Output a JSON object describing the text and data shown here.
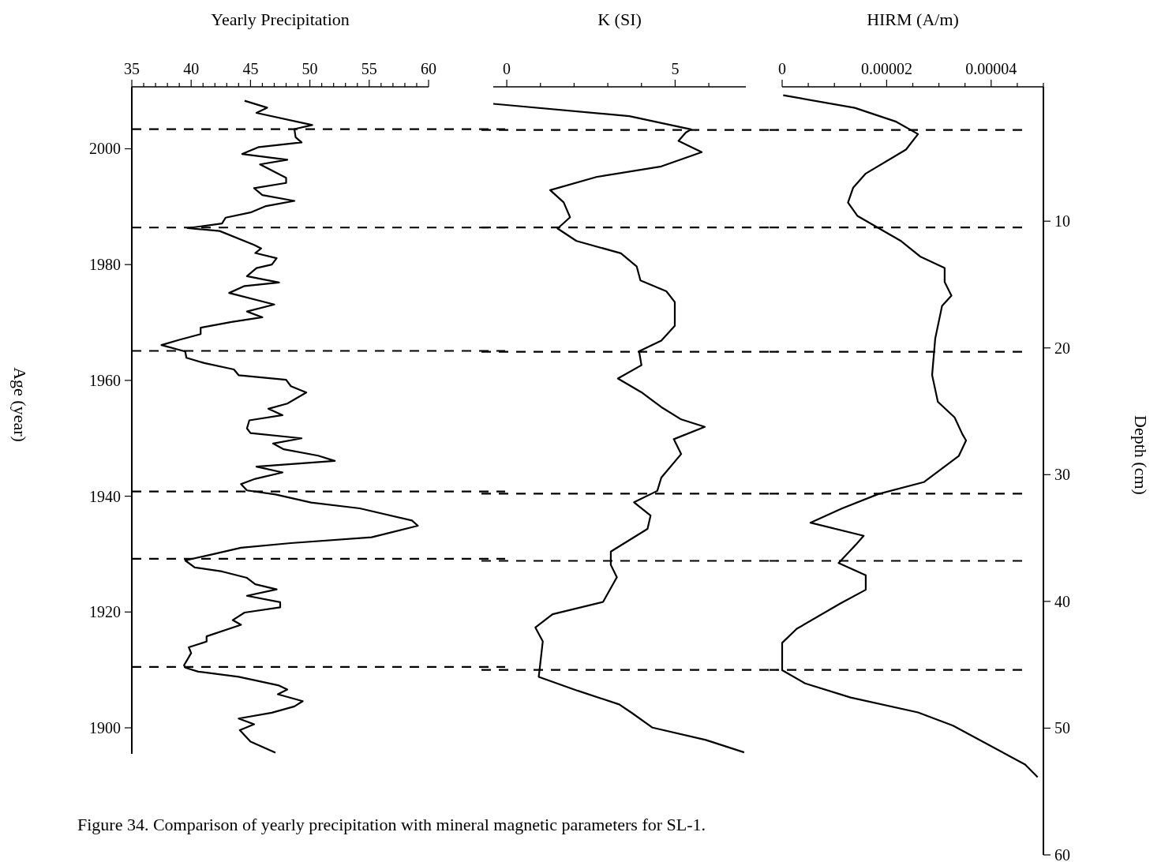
{
  "chart_data": [
    {
      "type": "line",
      "xlabel": "Yearly Precipitation",
      "ylabel": "Age (year)",
      "xlim": [
        35,
        60
      ],
      "xticks": [
        35,
        {
          "value": 36,
          "label": null
        },
        {
          "value": 37,
          "label": null
        },
        {
          "value": 38,
          "label": null
        },
        {
          "value": 39,
          "label": null
        },
        40,
        {
          "value": 41,
          "label": null
        },
        {
          "value": 42,
          "label": null
        },
        {
          "value": 43,
          "label": null
        },
        {
          "value": 44,
          "label": null
        },
        45,
        {
          "value": 46,
          "label": null
        },
        {
          "value": 47,
          "label": null
        },
        {
          "value": 48,
          "label": null
        },
        {
          "value": 49,
          "label": null
        },
        50,
        {
          "value": 51,
          "label": null
        },
        {
          "value": 52,
          "label": null
        },
        {
          "value": 53,
          "label": null
        },
        {
          "value": 54,
          "label": null
        },
        55,
        {
          "value": 56,
          "label": null
        },
        {
          "value": 57,
          "label": null
        },
        {
          "value": 58,
          "label": null
        },
        {
          "value": 59,
          "label": null
        },
        60
      ],
      "ylim": [
        1895.5,
        2010.7
      ],
      "yticks": [
        1900,
        1920,
        1940,
        1960,
        1980,
        2000
      ],
      "grid": false,
      "series": [
        {
          "color": "#000000",
          "x": [
            44.5,
            46.4,
            45.5,
            50.2,
            48.7,
            48.8,
            49.3,
            45.7,
            44.3,
            48.1,
            45.8,
            48.0,
            48.0,
            45.3,
            46.0,
            48.7,
            46.3,
            45.0,
            42.9,
            42.6,
            39.7,
            42.4,
            45.3,
            45.9,
            45.4,
            47.2,
            46.8,
            45.5,
            44.7,
            47.4,
            44.5,
            43.2,
            47.0,
            44.7,
            46.0,
            43.4,
            40.8,
            40.8,
            39.0,
            37.5,
            39.5,
            39.6,
            41.1,
            43.6,
            44.0,
            48.0,
            48.4,
            49.7,
            48.1,
            46.5,
            47.7,
            44.9,
            44.7,
            45.0,
            49.3,
            46.9,
            47.8,
            50.7,
            52.1,
            45.5,
            47.7,
            45.4,
            44.2,
            44.7,
            47.1,
            50.1,
            54.2,
            58.6,
            59.1,
            55.2,
            48.4,
            44.2,
            41.9,
            39.5,
            40.3,
            42.6,
            44.7,
            45.4,
            47.2,
            44.7,
            47.5,
            47.5,
            44.5,
            43.5,
            44.2,
            41.3,
            41.3,
            39.8,
            40.0,
            39.4,
            39.5,
            40.6,
            44.0,
            47.4,
            48.1,
            47.3,
            49.4,
            48.7,
            46.8,
            44.0,
            45.3,
            44.1,
            45.0,
            47.1
          ],
          "values": [
            2008.3,
            2007.1,
            2006.2,
            2004.1,
            2003.4,
            2002.0,
            2001.1,
            2000.3,
            1999.1,
            1998.1,
            1997.3,
            1995.0,
            1994.1,
            1993.2,
            1992.0,
            1991.0,
            1990.1,
            1989.0,
            1988.1,
            1987.1,
            1986.3,
            1985.8,
            1983.4,
            1982.8,
            1982.0,
            1981.1,
            1980.0,
            1979.4,
            1978.0,
            1976.9,
            1976.3,
            1975.1,
            1973.1,
            1971.9,
            1970.9,
            1970.1,
            1969.1,
            1968.0,
            1967.0,
            1966.1,
            1965.0,
            1963.9,
            1963.0,
            1961.9,
            1960.9,
            1960.1,
            1959.0,
            1957.9,
            1956.0,
            1955.1,
            1954.0,
            1953.1,
            1951.7,
            1950.9,
            1950.0,
            1949.1,
            1948.1,
            1947.0,
            1946.1,
            1945.1,
            1944.1,
            1943.0,
            1942.1,
            1941.0,
            1940.3,
            1938.9,
            1937.9,
            1935.8,
            1934.9,
            1932.9,
            1931.9,
            1931.1,
            1930.0,
            1928.9,
            1927.7,
            1927.0,
            1925.9,
            1924.8,
            1923.9,
            1922.8,
            1921.7,
            1920.8,
            1919.9,
            1918.6,
            1917.8,
            1915.8,
            1914.9,
            1913.9,
            1912.9,
            1910.8,
            1910.4,
            1909.7,
            1908.8,
            1907.3,
            1906.6,
            1905.8,
            1904.6,
            1903.7,
            1902.6,
            1901.6,
            1900.6,
            1899.6,
            1897.6,
            1895.7
          ]
        }
      ],
      "ref_lines": [
        {
          "axis": "y",
          "value": 2003.4,
          "line_style": "dashed"
        },
        {
          "axis": "y",
          "value": 1986.4,
          "line_style": "dashed"
        },
        {
          "axis": "y",
          "value": 1965.1,
          "line_style": "dashed"
        },
        {
          "axis": "y",
          "value": 1940.8,
          "line_style": "dashed"
        },
        {
          "axis": "y",
          "value": 1929.2,
          "line_style": "dashed"
        },
        {
          "axis": "y",
          "value": 1910.5,
          "line_style": "dashed"
        }
      ],
      "annotations": [
        "Figure 34.  Comparison of yearly precipitation with mineral magnetic parameters for SL-1."
      ]
    },
    {
      "type": "line",
      "xlabel": "K (SI)",
      "xlim": [
        -0.4,
        7.1
      ],
      "xticks": [
        0,
        {
          "value": 1,
          "label": null
        },
        {
          "value": 2,
          "label": null
        },
        {
          "value": 3,
          "label": null
        },
        {
          "value": 4,
          "label": null
        },
        5,
        {
          "value": 6,
          "label": null
        }
      ],
      "ylim": [
        60,
        -0.6
      ],
      "tick_labels": "x",
      "grid": false,
      "series": [
        {
          "color": "#000000",
          "x": [
            -0.4,
            3.64,
            5.47,
            5.32,
            5.1,
            5.79,
            4.59,
            2.68,
            1.29,
            1.69,
            1.88,
            1.51,
            2.07,
            3.39,
            3.86,
            3.97,
            4.74,
            4.99,
            4.99,
            4.59,
            3.93,
            4.0,
            3.3,
            4.0,
            4.59,
            5.18,
            5.88,
            4.96,
            5.18,
            4.59,
            4.47,
            3.78,
            4.27,
            4.18,
            3.09,
            3.09,
            3.27,
            2.86,
            1.36,
            0.85,
            1.07,
            1.0,
            0.95,
            2.1,
            3.34,
            3.71,
            4.33,
            5.91,
            7.05
          ],
          "values": [
            0.74,
            1.71,
            2.76,
            3.0,
            3.66,
            4.55,
            5.68,
            6.5,
            7.55,
            8.52,
            9.69,
            10.58,
            11.56,
            12.53,
            13.58,
            14.67,
            15.53,
            16.38,
            18.25,
            19.42,
            20.27,
            21.36,
            22.41,
            23.5,
            24.67,
            25.64,
            26.23,
            27.2,
            28.37,
            30.23,
            31.28,
            32.18,
            33.23,
            34.28,
            36.07,
            37.12,
            38.09,
            40.04,
            41.01,
            42.06,
            43.15,
            44.79,
            45.95,
            47.04,
            48.13,
            48.79,
            49.96,
            50.93,
            51.91
          ]
        }
      ],
      "ref_lines": [
        {
          "axis": "y",
          "value": 2.8,
          "line_style": "dashed"
        },
        {
          "axis": "y",
          "value": 10.5,
          "line_style": "dashed"
        },
        {
          "axis": "y",
          "value": 20.3,
          "line_style": "dashed"
        },
        {
          "axis": "y",
          "value": 31.5,
          "line_style": "dashed"
        },
        {
          "axis": "y",
          "value": 36.8,
          "line_style": "dashed"
        },
        {
          "axis": "y",
          "value": 45.4,
          "line_style": "dashed"
        }
      ]
    },
    {
      "type": "line",
      "xlabel": "HIRM (A/m)",
      "ylabel": "Depth (cm)",
      "xlim": [
        0,
        5e-05
      ],
      "xticks": [
        0,
        {
          "value": 5e-06,
          "label": null
        },
        {
          "value": 1e-05,
          "label": null
        },
        {
          "value": 1.5e-05,
          "label": null
        },
        {
          "value": 2e-05,
          "label": "0.00002"
        },
        {
          "value": 2.5e-05,
          "label": null
        },
        {
          "value": 3e-05,
          "label": null
        },
        {
          "value": 3.5e-05,
          "label": null
        },
        {
          "value": 4e-05,
          "label": "0.00004"
        },
        {
          "value": 4.5e-05,
          "label": null
        },
        {
          "value": 5e-05,
          "label": null
        }
      ],
      "ylim": [
        60,
        -0.6
      ],
      "yticks": [
        10,
        20,
        30,
        40,
        50,
        60
      ],
      "grid": false,
      "series": [
        {
          "color": "#000000",
          "x": [
            2e-07,
            1.39e-05,
            2.17e-05,
            2.6e-05,
            2.37e-05,
            1.6e-05,
            1.36e-05,
            1.26e-05,
            1.44e-05,
            2.28e-05,
            2.65e-05,
            3.11e-05,
            3.11e-05,
            3.24e-05,
            3.06e-05,
            2.93e-05,
            2.87e-05,
            2.98e-05,
            3.3e-05,
            3.45e-05,
            3.52e-05,
            3.38e-05,
            2.71e-05,
            1.84e-05,
            1.14e-05,
            5.4e-06,
            1.56e-05,
            1.41e-05,
            1.08e-05,
            1.6e-05,
            1.6e-05,
            1.12e-05,
            2.8e-06,
            0,
            0,
            4.4e-06,
            1.31e-05,
            2.6e-05,
            3.27e-05,
            4.65e-05,
            4.89e-05
          ],
          "values": [
            0.06,
            1.06,
            2.13,
            3.13,
            4.35,
            6.24,
            7.35,
            8.53,
            9.58,
            11.58,
            12.81,
            13.69,
            14.8,
            15.87,
            16.69,
            19.25,
            22.14,
            24.25,
            25.48,
            26.81,
            27.3,
            28.53,
            30.59,
            31.53,
            32.68,
            33.79,
            34.82,
            35.53,
            36.97,
            37.93,
            39.08,
            40.15,
            42.16,
            43.27,
            45.43,
            46.47,
            47.58,
            48.76,
            49.8,
            52.87,
            53.87
          ]
        }
      ],
      "ref_lines": [
        {
          "axis": "y",
          "value": 2.8,
          "line_style": "dashed"
        },
        {
          "axis": "y",
          "value": 10.5,
          "line_style": "dashed"
        },
        {
          "axis": "y",
          "value": 20.3,
          "line_style": "dashed"
        },
        {
          "axis": "y",
          "value": 31.5,
          "line_style": "dashed"
        },
        {
          "axis": "y",
          "value": 36.8,
          "line_style": "dashed"
        },
        {
          "axis": "y",
          "value": 45.4,
          "line_style": "dashed"
        }
      ]
    }
  ]
}
